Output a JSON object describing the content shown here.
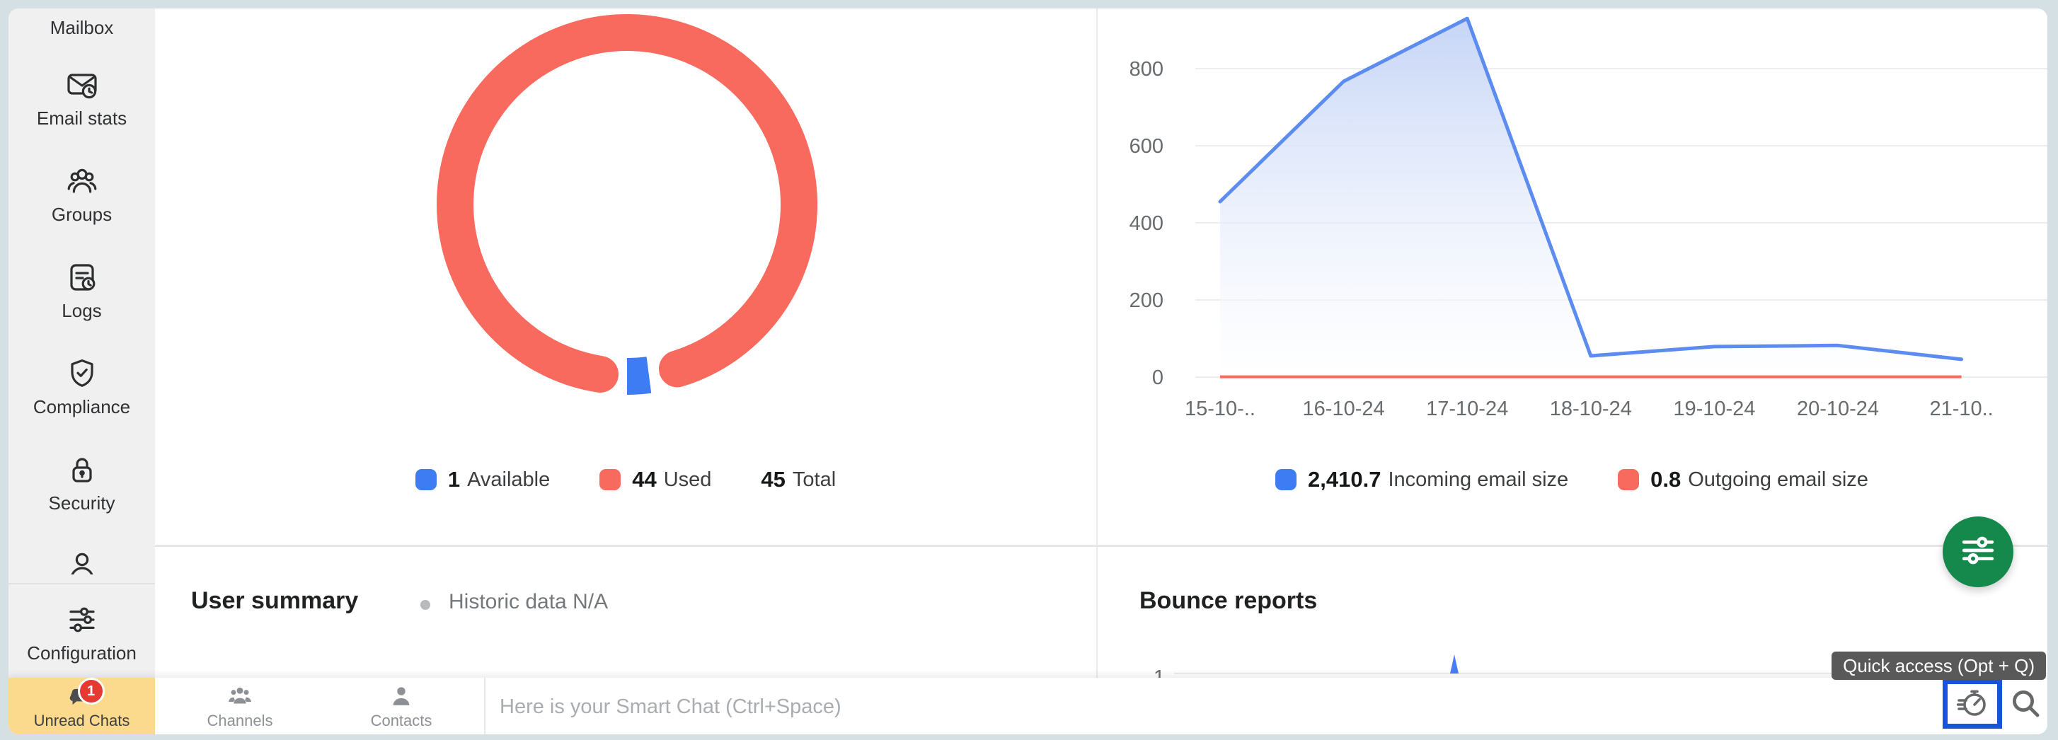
{
  "colors": {
    "frame_border": "#d5e0e4",
    "sidebar_bg": "#f0f0f1",
    "accent_blue": "#3d7cf3",
    "accent_red": "#f8695e",
    "fab_green": "#15884c",
    "active_tab_yellow": "#fbda8e",
    "badge_red": "#e53a31",
    "quick_access_border_blue": "#1a53d8"
  },
  "sidebar": {
    "items": [
      {
        "label": "Mailbox"
      },
      {
        "label": "Email stats"
      },
      {
        "label": "Groups"
      },
      {
        "label": "Logs"
      },
      {
        "label": "Compliance"
      },
      {
        "label": "Security"
      },
      {
        "label": ""
      },
      {
        "label": "Configuration"
      }
    ]
  },
  "sections": {
    "user_summary": {
      "title": "User summary",
      "subtitle": "Historic data N/A"
    },
    "bounce_reports": {
      "title": "Bounce reports"
    }
  },
  "chat_bar": {
    "tabs": [
      {
        "label": "Unread Chats",
        "badge": "1",
        "active": true
      },
      {
        "label": "Channels",
        "active": false
      },
      {
        "label": "Contacts",
        "active": false
      }
    ],
    "input_placeholder": "Here is your Smart Chat (Ctrl+Space)"
  },
  "tooltip": {
    "text": "Quick access (Opt + Q)"
  },
  "chart_data": [
    {
      "id": "mailbox-usage",
      "type": "pie",
      "subtype": "donut",
      "slices": [
        {
          "label": "Available",
          "value": 1,
          "color": "#3d7cf3"
        },
        {
          "label": "Used",
          "value": 44,
          "color": "#f8695e"
        }
      ],
      "total_value": 45,
      "total_label": "Total",
      "legend_position": "bottom"
    },
    {
      "id": "email-size",
      "type": "area",
      "x": [
        "15-10-..",
        "16-10-24",
        "17-10-24",
        "18-10-24",
        "19-10-24",
        "20-10-24",
        "21-10.."
      ],
      "series": [
        {
          "name": "Incoming email size",
          "display_total": "2,410.7",
          "color": "#3d7cf3",
          "line_color": "#5c8cf0",
          "values": [
            455,
            767,
            930,
            55,
            79,
            82,
            46
          ]
        },
        {
          "name": "Outgoing email size",
          "display_total": "0.8",
          "color": "#f8695e",
          "line_color": "#f8695e",
          "values": [
            0.8,
            0.8,
            0.8,
            0.8,
            0.8,
            0.8,
            0.8
          ]
        }
      ],
      "ylim": [
        0,
        950
      ],
      "yticks": [
        0,
        200,
        400,
        600,
        800
      ],
      "grid": true,
      "legend_position": "bottom"
    },
    {
      "id": "bounce-reports",
      "type": "line",
      "title": "Bounce reports",
      "yticks": [
        "1"
      ],
      "spike": {
        "x": "17-10-24",
        "value": 1,
        "color": "#4b7df2"
      },
      "note": "partially visible, cut off by chat bar"
    }
  ]
}
